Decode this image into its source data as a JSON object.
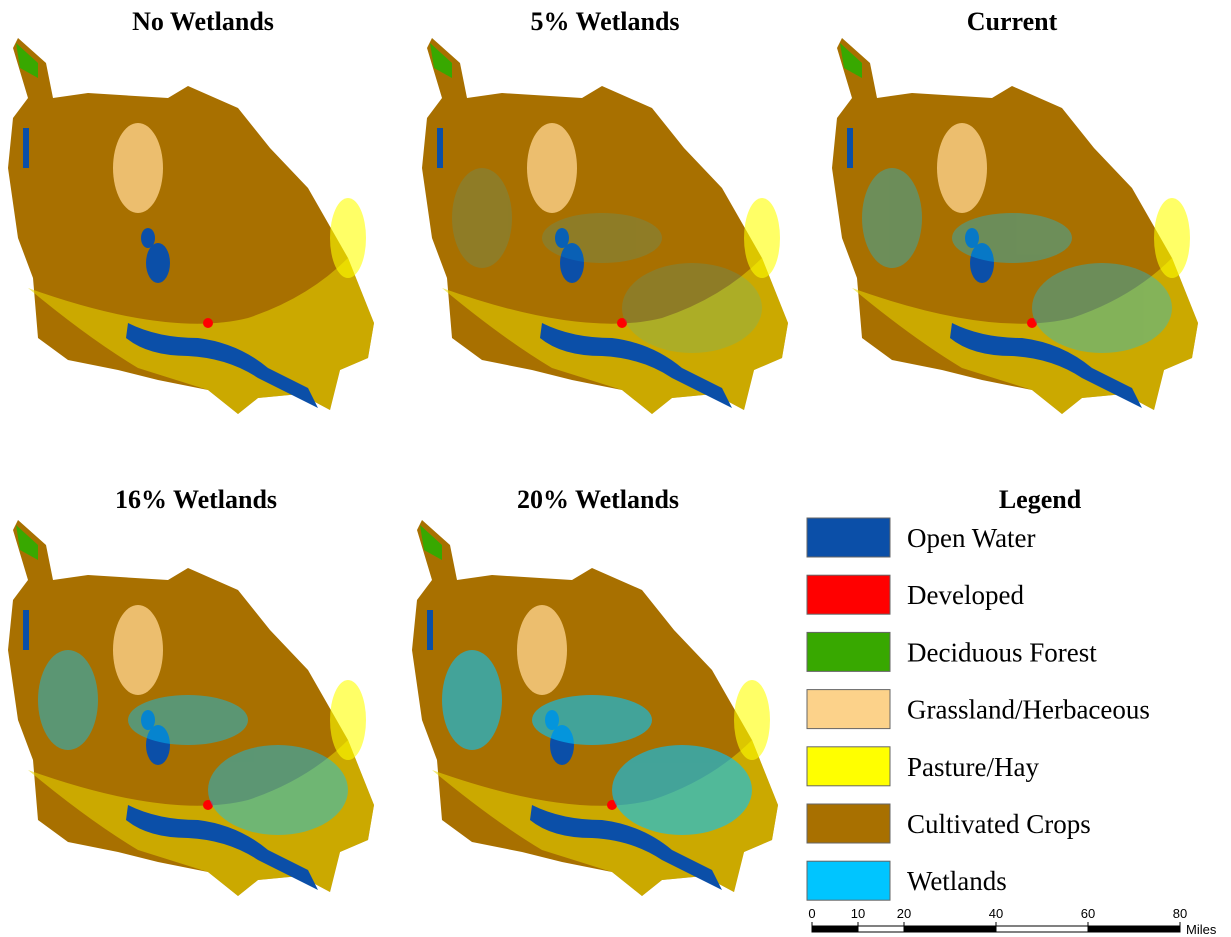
{
  "panels": [
    {
      "title": "No Wetlands"
    },
    {
      "title": "5% Wetlands"
    },
    {
      "title": "Current"
    },
    {
      "title": "16% Wetlands"
    },
    {
      "title": "20% Wetlands"
    }
  ],
  "legend": {
    "title": "Legend",
    "items": [
      {
        "label": "Open Water",
        "color": "#0b4fa8"
      },
      {
        "label": "Developed",
        "color": "#ff0000"
      },
      {
        "label": "Deciduous Forest",
        "color": "#38a800"
      },
      {
        "label": "Grassland/Herbaceous",
        "color": "#fcd28a"
      },
      {
        "label": "Pasture/Hay",
        "color": "#ffff00"
      },
      {
        "label": "Cultivated Crops",
        "color": "#a87000"
      },
      {
        "label": "Wetlands",
        "color": "#00c5ff"
      }
    ]
  },
  "scale_bar": {
    "ticks": [
      0,
      10,
      20,
      40,
      60,
      80
    ],
    "unit": "Miles"
  }
}
